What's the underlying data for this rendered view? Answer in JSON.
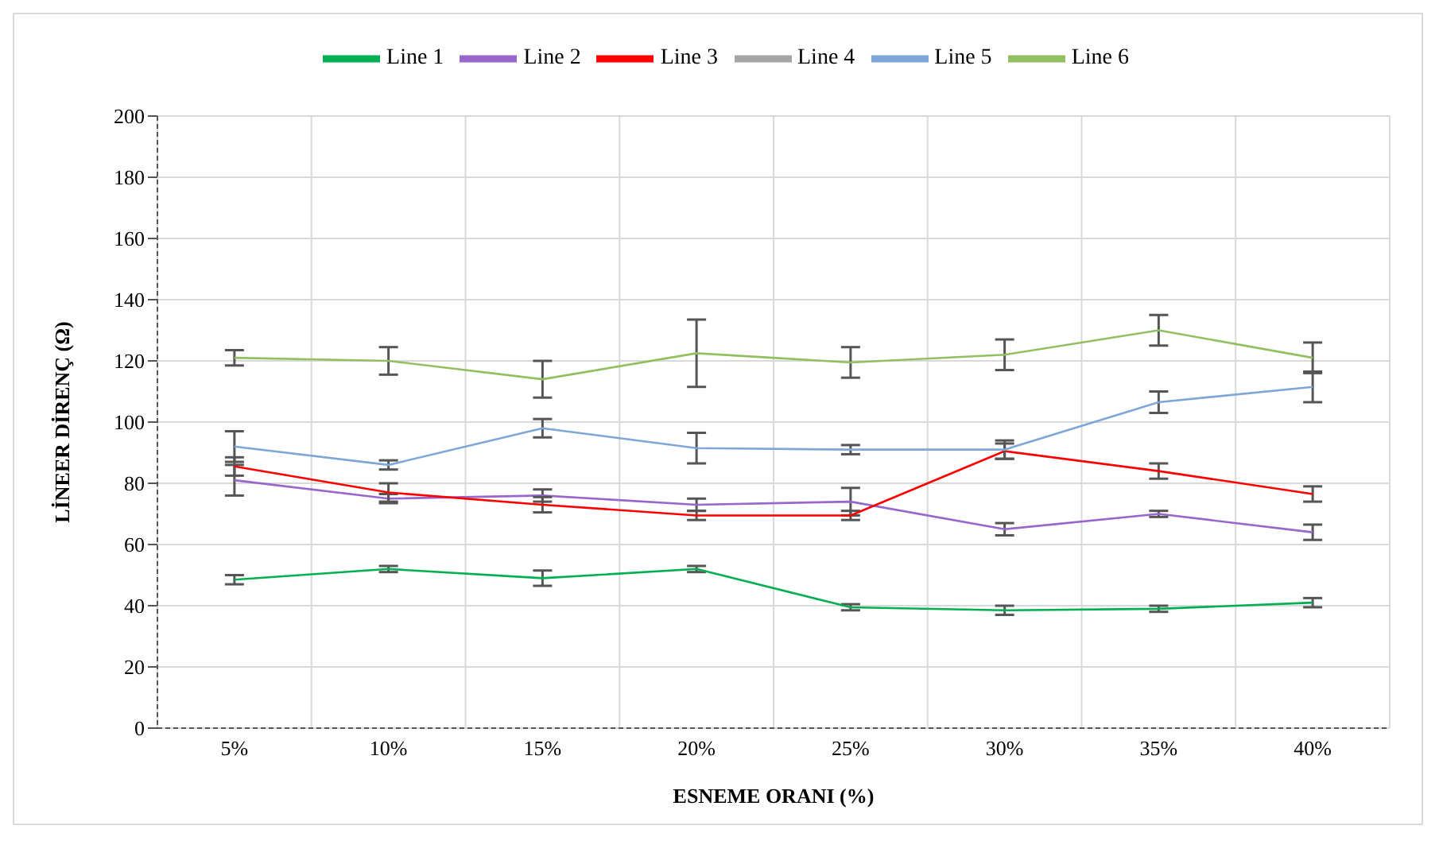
{
  "chart_data": {
    "type": "line",
    "xlabel": "ESNEME ORANI (%)",
    "ylabel": "LİNEER DİRENÇ  (Ω)",
    "categories": [
      "5%",
      "10%",
      "15%",
      "20%",
      "25%",
      "30%",
      "35%",
      "40%"
    ],
    "ylim": [
      0,
      200
    ],
    "yticks": [
      0,
      20,
      40,
      60,
      80,
      100,
      120,
      140,
      160,
      180,
      200
    ],
    "grid": true,
    "legend": "top",
    "marker": "none",
    "line_style": "solid",
    "series": [
      {
        "name": "Line 1",
        "color": "#00b050",
        "values": [
          48.5,
          52,
          49,
          52,
          39.5,
          38.5,
          39,
          41
        ],
        "errors": [
          1.5,
          1,
          2.5,
          1,
          1,
          1.5,
          1,
          1.5
        ]
      },
      {
        "name": "Line 2",
        "color": "#9966cc",
        "values": [
          81,
          75,
          76,
          73,
          74,
          65,
          70,
          64
        ],
        "errors": [
          5,
          1.5,
          2,
          2,
          4.5,
          2,
          1,
          2.5
        ]
      },
      {
        "name": "Line 3",
        "color": "#ff0000",
        "values": [
          85.5,
          77,
          73,
          69.5,
          69.5,
          90.5,
          84,
          76.5
        ],
        "errors": [
          3,
          3,
          2.5,
          1.5,
          1.5,
          2.5,
          2.5,
          2.5
        ]
      },
      {
        "name": "Line 4",
        "color": "#a6a6a6",
        "values": [
          null,
          null,
          null,
          null,
          null,
          null,
          null,
          null
        ]
      },
      {
        "name": "Line 5",
        "color": "#7ea6d6",
        "values": [
          92,
          86,
          98,
          91.5,
          91,
          91,
          106.5,
          111.5
        ],
        "errors": [
          5,
          1.5,
          3,
          5,
          1.5,
          3,
          3.5,
          5
        ]
      },
      {
        "name": "Line 6",
        "color": "#92c060",
        "values": [
          121,
          120,
          114,
          122.5,
          119.5,
          122,
          130,
          121
        ],
        "errors": [
          2.5,
          4.5,
          6,
          11,
          5,
          5,
          5,
          5
        ]
      }
    ]
  }
}
